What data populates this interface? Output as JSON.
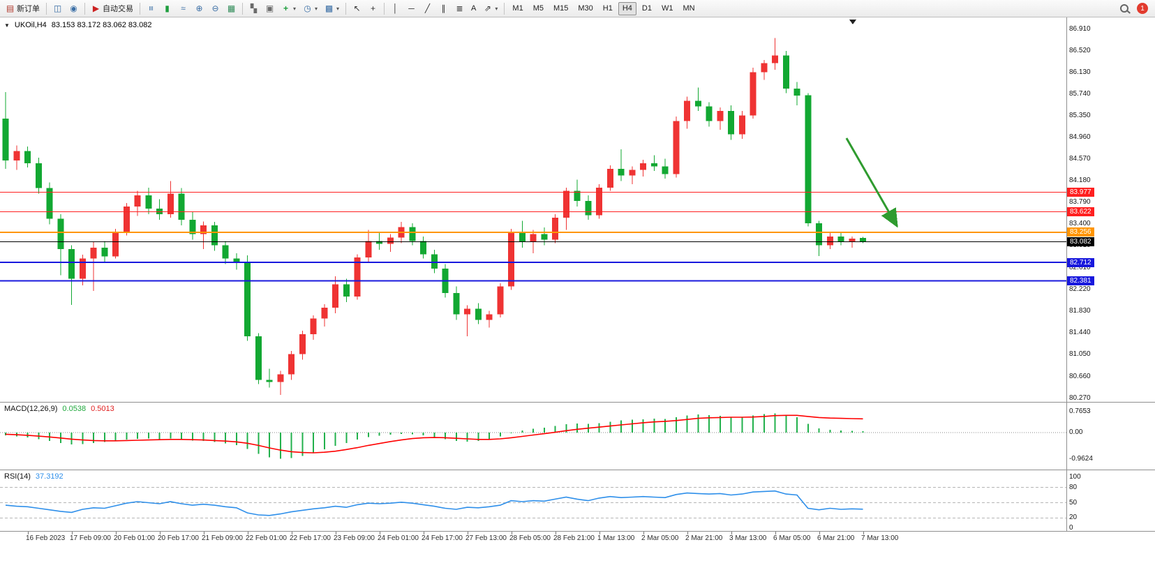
{
  "toolbar": {
    "new_order_label": "新订单",
    "autotrading_label": "自动交易",
    "text_tool_label": "A",
    "timeframes": [
      "M1",
      "M5",
      "M15",
      "M30",
      "H1",
      "H4",
      "D1",
      "W1",
      "MN"
    ],
    "active_timeframe": "H4",
    "notification_count": "1",
    "items": [
      {
        "k": "btn",
        "name": "new-order-button",
        "icon": "new-order-icon",
        "g": "▤",
        "gc": "#b03a2e",
        "labelKey": "new_order_label"
      },
      {
        "k": "sep"
      },
      {
        "k": "btn",
        "name": "market-watch-button",
        "icon": "market-watch-icon",
        "g": "◫",
        "gc": "#3a6ea5"
      },
      {
        "k": "btn",
        "name": "data-window-button",
        "icon": "data-window-icon",
        "g": "◉",
        "gc": "#3a6ea5"
      },
      {
        "k": "sep"
      },
      {
        "k": "btn",
        "name": "autotrading-button",
        "icon": "autotrading-icon",
        "g": "▶",
        "gc": "#cc2222",
        "labelKey": "autotrading_label"
      },
      {
        "k": "sep"
      },
      {
        "k": "btn",
        "name": "bar-chart-button",
        "icon": "bar-chart-icon",
        "g": "≡",
        "gc": "#3a6ea5",
        "rot": true
      },
      {
        "k": "btn",
        "name": "candlestick-chart-button",
        "icon": "candlestick-icon",
        "g": "▮",
        "gc": "#1e9e3e"
      },
      {
        "k": "btn",
        "name": "line-chart-button",
        "icon": "line-chart-icon",
        "g": "≈",
        "gc": "#3a6ea5"
      },
      {
        "k": "btn",
        "name": "zoom-in-button",
        "icon": "zoom-in-icon",
        "g": "⊕",
        "gc": "#3a6ea5"
      },
      {
        "k": "btn",
        "name": "zoom-out-button",
        "icon": "zoom-out-icon",
        "g": "⊖",
        "gc": "#3a6ea5"
      },
      {
        "k": "btn",
        "name": "grid-button",
        "icon": "grid-icon",
        "g": "▦",
        "gc": "#2e8b57"
      },
      {
        "k": "sep"
      },
      {
        "k": "btn",
        "name": "tile-windows-button",
        "icon": "tile-windows-icon",
        "g": "▚",
        "gc": "#6b6b6b"
      },
      {
        "k": "btn",
        "name": "cascade-windows-button",
        "icon": "cascade-windows-icon",
        "g": "▣",
        "gc": "#6b6b6b"
      },
      {
        "k": "btn",
        "name": "new-chart-button",
        "icon": "new-chart-icon",
        "g": "+",
        "gc": "#1e9e3e",
        "bold": true,
        "dd": true
      },
      {
        "k": "btn",
        "name": "period-button",
        "icon": "clock-icon",
        "g": "◷",
        "gc": "#3a6ea5",
        "dd": true
      },
      {
        "k": "btn",
        "name": "template-button",
        "icon": "template-icon",
        "g": "▩",
        "gc": "#3a6ea5",
        "dd": true
      },
      {
        "k": "sep"
      },
      {
        "k": "btn",
        "name": "cursor-button",
        "icon": "cursor-icon",
        "g": "↖",
        "gc": "#333"
      },
      {
        "k": "btn",
        "name": "crosshair-button",
        "icon": "crosshair-icon",
        "g": "+",
        "gc": "#333"
      },
      {
        "k": "sep"
      },
      {
        "k": "btn",
        "name": "vertical-line-button",
        "icon": "vertical-line-icon",
        "g": "│",
        "gc": "#333"
      },
      {
        "k": "btn",
        "name": "horizontal-line-button",
        "icon": "horizontal-line-icon",
        "g": "─",
        "gc": "#333"
      },
      {
        "k": "btn",
        "name": "trendline-button",
        "icon": "trendline-icon",
        "g": "╱",
        "gc": "#333"
      },
      {
        "k": "btn",
        "name": "channel-button",
        "icon": "channel-icon",
        "g": "∥",
        "gc": "#333"
      },
      {
        "k": "btn",
        "name": "fibonacci-button",
        "icon": "fibonacci-icon",
        "g": "≣",
        "gc": "#333"
      },
      {
        "k": "btn",
        "name": "text-tool-button",
        "icon": "text-icon",
        "labelKey": "text_tool_label",
        "bold": true
      },
      {
        "k": "btn",
        "name": "arrows-tool-button",
        "icon": "arrows-icon",
        "g": "⇗",
        "gc": "#333",
        "dd": true
      },
      {
        "k": "sep"
      },
      {
        "k": "tfgroup"
      },
      {
        "k": "spacer"
      },
      {
        "k": "btn",
        "name": "search-button",
        "icon": "search-icon",
        "cssIcon": "mag"
      },
      {
        "k": "badge",
        "name": "notification-badge"
      }
    ]
  },
  "chart": {
    "title": {
      "symbol_period": "UKOil,H4",
      "ohlc": "83.153 83.172 83.062 83.082"
    }
  },
  "chart_data": {
    "type": "candlestick",
    "symbol": "UKOil",
    "period": "H4",
    "note": "red = bullish, green = bearish (CN convention)",
    "colors": {
      "up": "#ef3333",
      "down": "#12a832",
      "macd_hist": "#22b14c",
      "macd_signal": "#ff0000",
      "rsi": "#2e8fea"
    },
    "price_axis": [
      "86.910",
      "86.520",
      "86.130",
      "85.740",
      "85.350",
      "84.960",
      "84.570",
      "84.180",
      "83.790",
      "83.400",
      "83.010",
      "82.610",
      "82.220",
      "81.830",
      "81.440",
      "81.050",
      "80.660",
      "80.270"
    ],
    "hlines": [
      {
        "name": "resistance-line-1",
        "value": 83.977,
        "label": "83.977",
        "color": "#ff2020",
        "width": 1,
        "badge": true
      },
      {
        "name": "resistance-line-2",
        "value": 83.622,
        "label": "83.622",
        "color": "#ff2020",
        "width": 1,
        "badge": true
      },
      {
        "name": "pivot-line",
        "value": 83.256,
        "label": "83.256",
        "color": "#ff9500",
        "width": 2,
        "badge": true
      },
      {
        "name": "support-line-1",
        "value": 82.712,
        "label": "82.712",
        "color": "#1818dd",
        "width": 2,
        "badge": true
      },
      {
        "name": "support-line-2",
        "value": 82.381,
        "label": "82.381",
        "color": "#1818dd",
        "width": 2,
        "badge": true
      },
      {
        "name": "current-price-line",
        "value": 83.082,
        "label": "83.082",
        "color": "#000000",
        "width": 1,
        "badge": true
      }
    ],
    "time_labels": [
      "16 Feb 2023",
      "17 Feb 09:00",
      "20 Feb 01:00",
      "20 Feb 17:00",
      "21 Feb 09:00",
      "22 Feb 01:00",
      "22 Feb 17:00",
      "23 Feb 09:00",
      "24 Feb 01:00",
      "24 Feb 17:00",
      "27 Feb 13:00",
      "28 Feb 05:00",
      "28 Feb 21:00",
      "1 Mar 13:00",
      "2 Mar 05:00",
      "2 Mar 21:00",
      "3 Mar 13:00",
      "6 Mar 05:00",
      "6 Mar 21:00",
      "7 Mar 13:00"
    ],
    "candles": [
      [
        85.3,
        85.78,
        84.4,
        84.55
      ],
      [
        84.55,
        84.82,
        84.38,
        84.72
      ],
      [
        84.72,
        84.8,
        84.42,
        84.5
      ],
      [
        84.5,
        84.6,
        83.95,
        84.05
      ],
      [
        84.05,
        84.15,
        83.4,
        83.5
      ],
      [
        83.5,
        83.58,
        82.48,
        82.95
      ],
      [
        82.95,
        83.02,
        81.95,
        82.42
      ],
      [
        82.42,
        82.85,
        82.3,
        82.78
      ],
      [
        82.78,
        83.08,
        82.2,
        82.98
      ],
      [
        82.98,
        83.1,
        82.72,
        82.82
      ],
      [
        82.82,
        83.32,
        82.78,
        83.25
      ],
      [
        83.25,
        83.78,
        83.2,
        83.72
      ],
      [
        83.72,
        84.0,
        83.55,
        83.92
      ],
      [
        83.92,
        84.06,
        83.58,
        83.68
      ],
      [
        83.68,
        83.85,
        83.48,
        83.58
      ],
      [
        83.58,
        84.18,
        83.52,
        83.95
      ],
      [
        83.95,
        84.05,
        83.38,
        83.48
      ],
      [
        83.48,
        83.62,
        83.12,
        83.22
      ],
      [
        83.22,
        83.45,
        82.95,
        83.38
      ],
      [
        83.38,
        83.44,
        82.92,
        83.02
      ],
      [
        83.02,
        83.1,
        82.68,
        82.78
      ],
      [
        82.78,
        82.88,
        82.58,
        82.72
      ],
      [
        82.72,
        82.84,
        81.3,
        81.38
      ],
      [
        81.38,
        81.44,
        80.52,
        80.6
      ],
      [
        80.6,
        80.8,
        80.46,
        80.56
      ],
      [
        80.56,
        80.76,
        80.33,
        80.7
      ],
      [
        80.7,
        81.12,
        80.6,
        81.06
      ],
      [
        81.06,
        81.48,
        80.96,
        81.42
      ],
      [
        81.42,
        81.76,
        81.32,
        81.7
      ],
      [
        81.7,
        81.96,
        81.56,
        81.9
      ],
      [
        81.9,
        82.46,
        81.8,
        82.32
      ],
      [
        82.32,
        82.42,
        82.0,
        82.1
      ],
      [
        82.1,
        82.86,
        82.04,
        82.8
      ],
      [
        82.8,
        83.3,
        82.7,
        83.1
      ],
      [
        83.1,
        83.26,
        82.94,
        83.05
      ],
      [
        83.05,
        83.22,
        82.9,
        83.16
      ],
      [
        83.16,
        83.44,
        83.06,
        83.35
      ],
      [
        83.35,
        83.42,
        83.02,
        83.1
      ],
      [
        83.1,
        83.18,
        82.78,
        82.86
      ],
      [
        82.86,
        82.94,
        82.52,
        82.6
      ],
      [
        82.6,
        82.68,
        82.08,
        82.16
      ],
      [
        82.16,
        82.28,
        81.68,
        81.78
      ],
      [
        81.78,
        81.94,
        81.38,
        81.88
      ],
      [
        81.88,
        81.98,
        81.6,
        81.68
      ],
      [
        81.68,
        81.84,
        81.54,
        81.78
      ],
      [
        81.78,
        82.34,
        81.72,
        82.28
      ],
      [
        82.28,
        83.32,
        82.22,
        83.24
      ],
      [
        83.24,
        83.46,
        82.98,
        83.08
      ],
      [
        83.08,
        83.3,
        82.88,
        83.22
      ],
      [
        83.22,
        83.34,
        83.02,
        83.12
      ],
      [
        83.12,
        83.58,
        83.06,
        83.52
      ],
      [
        83.52,
        84.06,
        83.3,
        84.0
      ],
      [
        84.0,
        84.2,
        83.72,
        83.82
      ],
      [
        83.82,
        83.92,
        83.48,
        83.56
      ],
      [
        83.56,
        84.12,
        83.5,
        84.06
      ],
      [
        84.06,
        84.46,
        84.0,
        84.4
      ],
      [
        84.4,
        84.75,
        84.18,
        84.28
      ],
      [
        84.28,
        84.44,
        84.12,
        84.38
      ],
      [
        84.38,
        84.56,
        84.26,
        84.5
      ],
      [
        84.5,
        84.64,
        84.36,
        84.44
      ],
      [
        84.44,
        84.58,
        84.22,
        84.3
      ],
      [
        84.3,
        85.34,
        84.24,
        85.26
      ],
      [
        85.26,
        85.7,
        85.12,
        85.62
      ],
      [
        85.62,
        85.86,
        85.44,
        85.52
      ],
      [
        85.52,
        85.6,
        85.16,
        85.26
      ],
      [
        85.26,
        85.5,
        85.1,
        85.44
      ],
      [
        85.44,
        85.54,
        84.92,
        85.02
      ],
      [
        85.02,
        85.44,
        84.94,
        85.36
      ],
      [
        85.36,
        86.22,
        85.3,
        86.14
      ],
      [
        86.14,
        86.36,
        86.0,
        86.3
      ],
      [
        86.3,
        86.75,
        86.18,
        86.44
      ],
      [
        86.44,
        86.52,
        85.76,
        85.84
      ],
      [
        85.84,
        85.96,
        85.54,
        85.72
      ],
      [
        85.72,
        85.76,
        83.36,
        83.42
      ],
      [
        83.42,
        83.46,
        82.83,
        83.02
      ],
      [
        83.02,
        83.24,
        82.95,
        83.18
      ],
      [
        83.18,
        83.26,
        83.02,
        83.08
      ],
      [
        83.08,
        83.18,
        82.98,
        83.14
      ],
      [
        83.153,
        83.172,
        83.062,
        83.082
      ]
    ],
    "indicators": {
      "macd": {
        "label": "MACD(12,26,9)",
        "macd_value": "0.0538",
        "signal_value": "0.5013",
        "scale_labels": [
          "0.7653",
          "0.00",
          "-0.9624"
        ],
        "histogram": [
          -0.1,
          -0.14,
          -0.18,
          -0.24,
          -0.3,
          -0.38,
          -0.44,
          -0.42,
          -0.38,
          -0.35,
          -0.3,
          -0.26,
          -0.23,
          -0.22,
          -0.24,
          -0.22,
          -0.25,
          -0.29,
          -0.31,
          -0.35,
          -0.4,
          -0.46,
          -0.6,
          -0.78,
          -0.9,
          -0.96,
          -0.93,
          -0.85,
          -0.74,
          -0.61,
          -0.48,
          -0.38,
          -0.26,
          -0.16,
          -0.11,
          -0.08,
          -0.05,
          -0.06,
          -0.1,
          -0.16,
          -0.24,
          -0.3,
          -0.33,
          -0.3,
          -0.24,
          -0.14,
          -0.02,
          0.08,
          0.14,
          0.18,
          0.24,
          0.3,
          0.33,
          0.32,
          0.35,
          0.4,
          0.45,
          0.47,
          0.49,
          0.51,
          0.5,
          0.56,
          0.63,
          0.66,
          0.64,
          0.61,
          0.57,
          0.56,
          0.62,
          0.67,
          0.7,
          0.65,
          0.56,
          0.32,
          0.15,
          0.1,
          0.08,
          0.06,
          0.0538
        ],
        "signal": [
          -0.06,
          -0.08,
          -0.1,
          -0.13,
          -0.16,
          -0.2,
          -0.24,
          -0.27,
          -0.29,
          -0.3,
          -0.3,
          -0.29,
          -0.28,
          -0.27,
          -0.26,
          -0.25,
          -0.25,
          -0.26,
          -0.27,
          -0.29,
          -0.31,
          -0.34,
          -0.39,
          -0.47,
          -0.56,
          -0.64,
          -0.7,
          -0.73,
          -0.74,
          -0.72,
          -0.68,
          -0.62,
          -0.55,
          -0.47,
          -0.4,
          -0.33,
          -0.27,
          -0.22,
          -0.19,
          -0.18,
          -0.19,
          -0.21,
          -0.23,
          -0.25,
          -0.25,
          -0.23,
          -0.19,
          -0.14,
          -0.09,
          -0.04,
          0.01,
          0.07,
          0.12,
          0.16,
          0.2,
          0.24,
          0.28,
          0.32,
          0.36,
          0.39,
          0.41,
          0.44,
          0.48,
          0.52,
          0.54,
          0.55,
          0.56,
          0.56,
          0.57,
          0.59,
          0.62,
          0.63,
          0.63,
          0.59,
          0.55,
          0.53,
          0.52,
          0.51,
          0.5013
        ]
      },
      "rsi": {
        "label": "RSI(14)",
        "value": "37.3192",
        "levels": [
          80,
          50,
          20
        ],
        "scale_labels": [
          "100",
          "80",
          "50",
          "20",
          "0"
        ],
        "series": [
          45,
          43,
          42,
          39,
          36,
          33,
          31,
          37,
          40,
          39,
          44,
          49,
          52,
          50,
          48,
          52,
          48,
          45,
          47,
          45,
          42,
          40,
          30,
          26,
          25,
          28,
          32,
          35,
          38,
          40,
          43,
          41,
          46,
          49,
          48,
          49,
          51,
          49,
          46,
          43,
          39,
          37,
          41,
          40,
          42,
          45,
          54,
          52,
          54,
          53,
          57,
          61,
          57,
          54,
          59,
          62,
          60,
          61,
          62,
          61,
          60,
          66,
          69,
          68,
          67,
          68,
          65,
          67,
          71,
          72,
          73,
          67,
          65,
          39,
          36,
          39,
          37,
          38,
          37.32
        ]
      }
    },
    "annotations": [
      {
        "type": "arrow",
        "name": "sell-arrow-annotation",
        "color": "#2f9b2f",
        "from": {
          "bar": 76.5,
          "price": 84.95
        },
        "to": {
          "bar": 81.0,
          "price": 83.4
        }
      }
    ]
  }
}
